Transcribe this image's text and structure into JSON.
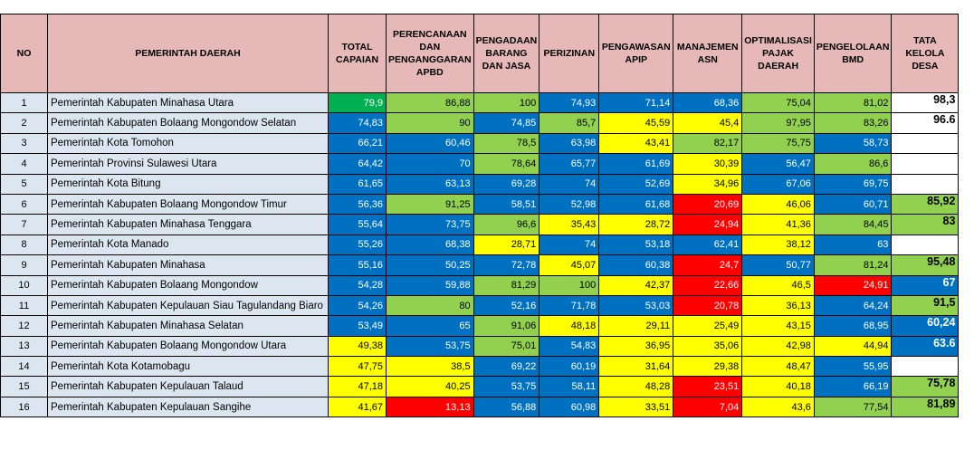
{
  "headers": [
    "NO",
    "PEMERINTAH DAERAH",
    "TOTAL CAPAIAN",
    "PERENCANAAN DAN PENGANGGARAN APBD",
    "PENGADAAN BARANG DAN JASA",
    "PERIZINAN",
    "PENGAWASAN APIP",
    "MANAJEMEN ASN",
    "OPTIMALISASI PAJAK DAERAH",
    "PENGELOLAAN BMD",
    "TATA KELOLA DESA"
  ],
  "legend_colors": {
    "lg": "#92d050",
    "dg": "#00b050",
    "b": "#0070c0",
    "y": "#ffff00",
    "r": "#ff0000",
    "w": "#ffffff"
  },
  "rows": [
    {
      "no": "1",
      "name": "Pemerintah Kabupaten Minahasa Utara",
      "vals": [
        "79,9",
        "86,88",
        "100",
        "74,93",
        "71,14",
        "68,36",
        "75,04",
        "81,02",
        "98,3"
      ],
      "colors": [
        "dg",
        "lg",
        "lg",
        "b",
        "b",
        "b",
        "lg",
        "lg",
        "w"
      ]
    },
    {
      "no": "2",
      "name": "Pemerintah Kabupaten Bolaang Mongondow Selatan",
      "vals": [
        "74,83",
        "90",
        "74,85",
        "85,7",
        "45,59",
        "45,4",
        "97,95",
        "83,26",
        "96.6"
      ],
      "colors": [
        "b",
        "lg",
        "b",
        "lg",
        "y",
        "y",
        "lg",
        "lg",
        "w"
      ]
    },
    {
      "no": "3",
      "name": "Pemerintah Kota Tomohon",
      "vals": [
        "66,21",
        "60,46",
        "78,5",
        "63,98",
        "43,41",
        "82,17",
        "75,75",
        "58,73",
        ""
      ],
      "colors": [
        "b",
        "b",
        "lg",
        "b",
        "y",
        "lg",
        "lg",
        "b",
        "w"
      ]
    },
    {
      "no": "4",
      "name": "Pemerintah Provinsi Sulawesi Utara",
      "vals": [
        "64,42",
        "70",
        "78,64",
        "65,77",
        "61,69",
        "30,39",
        "56,47",
        "86,6",
        ""
      ],
      "colors": [
        "b",
        "b",
        "lg",
        "b",
        "b",
        "y",
        "b",
        "lg",
        "w"
      ]
    },
    {
      "no": "5",
      "name": "Pemerintah Kota Bitung",
      "vals": [
        "61,65",
        "63,13",
        "69,28",
        "74",
        "52,69",
        "34,96",
        "67,06",
        "69,75",
        ""
      ],
      "colors": [
        "b",
        "b",
        "b",
        "b",
        "b",
        "y",
        "b",
        "b",
        "w"
      ]
    },
    {
      "no": "6",
      "name": "Pemerintah Kabupaten Bolaang Mongondow Timur",
      "vals": [
        "56,36",
        "91,25",
        "58,51",
        "52,98",
        "61,68",
        "20,69",
        "46,06",
        "60,71",
        "85,92"
      ],
      "colors": [
        "b",
        "lg",
        "b",
        "b",
        "b",
        "r",
        "y",
        "b",
        "lg"
      ]
    },
    {
      "no": "7",
      "name": "Pemerintah Kabupaten Minahasa Tenggara",
      "vals": [
        "55,64",
        "73,75",
        "96,6",
        "35,43",
        "28,72",
        "24,94",
        "41,36",
        "84,45",
        "83"
      ],
      "colors": [
        "b",
        "b",
        "lg",
        "y",
        "y",
        "r",
        "y",
        "lg",
        "lg"
      ]
    },
    {
      "no": "8",
      "name": "Pemerintah Kota Manado",
      "vals": [
        "55,26",
        "68,38",
        "28,71",
        "74",
        "53,18",
        "62,41",
        "38,12",
        "63",
        ""
      ],
      "colors": [
        "b",
        "b",
        "y",
        "b",
        "b",
        "b",
        "y",
        "b",
        "w"
      ]
    },
    {
      "no": "9",
      "name": "Pemerintah Kabupaten Minahasa",
      "vals": [
        "55,16",
        "50,25",
        "72,78",
        "45,07",
        "60,38",
        "24,7",
        "50,77",
        "81,24",
        "95,48"
      ],
      "colors": [
        "b",
        "b",
        "b",
        "y",
        "b",
        "r",
        "b",
        "lg",
        "lg"
      ]
    },
    {
      "no": "10",
      "name": "Pemerintah Kabupaten Bolaang Mongondow",
      "vals": [
        "54,28",
        "59,88",
        "81,29",
        "100",
        "42,37",
        "22,66",
        "46,5",
        "24,91",
        "67"
      ],
      "colors": [
        "b",
        "b",
        "lg",
        "lg",
        "y",
        "r",
        "y",
        "r",
        "b"
      ]
    },
    {
      "no": "11",
      "name": "Pemerintah Kabupaten Kepulauan Siau Tagulandang Biaro",
      "vals": [
        "54,26",
        "80",
        "52,16",
        "71,78",
        "53,03",
        "20,78",
        "36,13",
        "64,24",
        "91,5"
      ],
      "colors": [
        "b",
        "lg",
        "b",
        "b",
        "b",
        "r",
        "y",
        "b",
        "lg"
      ]
    },
    {
      "no": "12",
      "name": "Pemerintah Kabupaten Minahasa Selatan",
      "vals": [
        "53,49",
        "65",
        "91,06",
        "48,18",
        "29,11",
        "25,49",
        "43,15",
        "68,95",
        "60,24"
      ],
      "colors": [
        "b",
        "b",
        "lg",
        "y",
        "y",
        "y",
        "y",
        "b",
        "b"
      ]
    },
    {
      "no": "13",
      "name": "Pemerintah Kabupaten Bolaang Mongondow Utara",
      "vals": [
        "49,38",
        "53,75",
        "75,01",
        "54,83",
        "36,95",
        "35,06",
        "42,98",
        "44,94",
        "63.6"
      ],
      "colors": [
        "y",
        "b",
        "lg",
        "b",
        "y",
        "y",
        "y",
        "y",
        "b"
      ]
    },
    {
      "no": "14",
      "name": "Pemerintah Kota Kotamobagu",
      "vals": [
        "47,75",
        "38,5",
        "69,22",
        "60,19",
        "31,64",
        "29,38",
        "48,47",
        "55,95",
        ""
      ],
      "colors": [
        "y",
        "y",
        "b",
        "b",
        "y",
        "y",
        "y",
        "b",
        "w"
      ]
    },
    {
      "no": "15",
      "name": "Pemerintah Kabupaten Kepulauan Talaud",
      "vals": [
        "47,18",
        "40,25",
        "53,75",
        "58,11",
        "48,28",
        "23,51",
        "40,18",
        "66,19",
        "75,78"
      ],
      "colors": [
        "y",
        "y",
        "b",
        "b",
        "y",
        "r",
        "y",
        "b",
        "lg"
      ]
    },
    {
      "no": "16",
      "name": "Pemerintah Kabupaten Kepulauan Sangihe",
      "vals": [
        "41,67",
        "13,13",
        "56,88",
        "60,98",
        "33,51",
        "7,04",
        "43,6",
        "77,54",
        "81,89"
      ],
      "colors": [
        "y",
        "r",
        "b",
        "b",
        "y",
        "r",
        "y",
        "lg",
        "lg"
      ]
    }
  ]
}
